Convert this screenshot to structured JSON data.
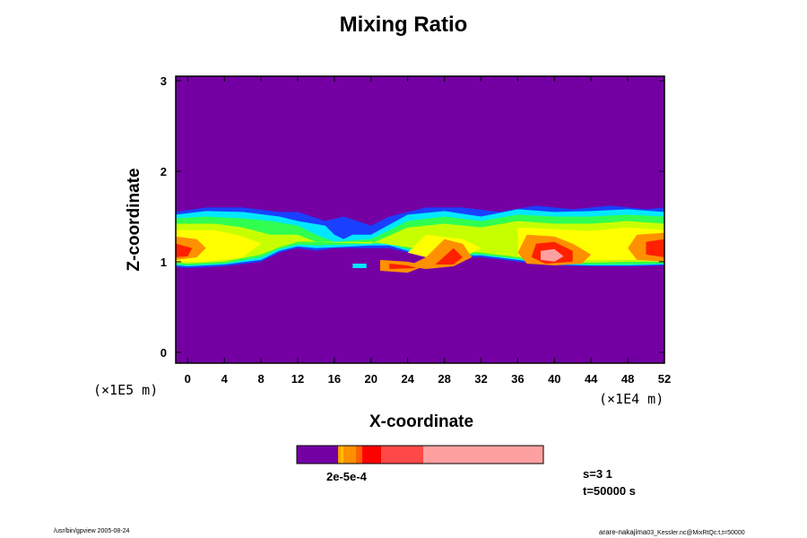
{
  "chart_data": {
    "type": "heatmap",
    "title": "Mixing Ratio",
    "xlabel": "X-coordinate",
    "ylabel": "Z-coordinate",
    "x_unit_label": "(×1E4 m)",
    "y_unit_label": "(×1E5 m)",
    "xlim": [
      -1.3,
      52
    ],
    "ylim": [
      -0.12,
      3.05
    ],
    "x_ticks": [
      "0",
      "4",
      "8",
      "12",
      "16",
      "20",
      "24",
      "28",
      "32",
      "36",
      "40",
      "44",
      "48",
      "52"
    ],
    "y_ticks": [
      "0",
      "1",
      "2",
      "3"
    ],
    "background_color": "#7400a4",
    "colorbar": {
      "colors": [
        "#7400a4",
        "#ffa000",
        "#ffc000",
        "#ff9000",
        "#ff6000",
        "#ff0000",
        "#ff4848",
        "#ffa0a0"
      ],
      "label": "2e-5e-4"
    },
    "layers": [
      {
        "name": "blue",
        "color": "#1a40ff",
        "points": [
          [
            -1.3,
            1.55
          ],
          [
            2,
            1.6
          ],
          [
            6,
            1.6
          ],
          [
            10,
            1.55
          ],
          [
            12,
            1.55
          ],
          [
            15,
            1.45
          ],
          [
            17,
            1.5
          ],
          [
            20,
            1.4
          ],
          [
            22,
            1.5
          ],
          [
            26,
            1.6
          ],
          [
            30,
            1.6
          ],
          [
            34,
            1.55
          ],
          [
            38,
            1.62
          ],
          [
            42,
            1.58
          ],
          [
            46,
            1.62
          ],
          [
            50,
            1.58
          ],
          [
            52,
            1.6
          ],
          [
            52,
            0.96
          ],
          [
            48,
            0.95
          ],
          [
            44,
            0.95
          ],
          [
            40,
            0.96
          ],
          [
            36,
            1.0
          ],
          [
            32,
            1.05
          ],
          [
            28,
            1.05
          ],
          [
            24,
            1.1
          ],
          [
            22,
            1.15
          ],
          [
            20,
            1.15
          ],
          [
            18,
            1.15
          ],
          [
            16,
            1.15
          ],
          [
            14,
            1.12
          ],
          [
            12,
            1.15
          ],
          [
            10,
            1.1
          ],
          [
            8,
            1.0
          ],
          [
            4,
            0.95
          ],
          [
            0,
            0.93
          ],
          [
            -1.3,
            0.94
          ]
        ]
      },
      {
        "name": "cyan",
        "color": "#00e8ff",
        "points": [
          [
            -1.3,
            1.52
          ],
          [
            2,
            1.56
          ],
          [
            6,
            1.55
          ],
          [
            10,
            1.5
          ],
          [
            12,
            1.45
          ],
          [
            15,
            1.4
          ],
          [
            16,
            1.3
          ],
          [
            17,
            1.25
          ],
          [
            18,
            1.3
          ],
          [
            20,
            1.3
          ],
          [
            24,
            1.52
          ],
          [
            28,
            1.56
          ],
          [
            32,
            1.5
          ],
          [
            36,
            1.58
          ],
          [
            40,
            1.55
          ],
          [
            44,
            1.56
          ],
          [
            48,
            1.58
          ],
          [
            52,
            1.55
          ],
          [
            52,
            0.97
          ],
          [
            48,
            0.96
          ],
          [
            44,
            0.96
          ],
          [
            40,
            0.97
          ],
          [
            36,
            1.02
          ],
          [
            32,
            1.07
          ],
          [
            28,
            1.07
          ],
          [
            24,
            1.12
          ],
          [
            22,
            1.18
          ],
          [
            20,
            1.18
          ],
          [
            14,
            1.15
          ],
          [
            12,
            1.17
          ],
          [
            10,
            1.12
          ],
          [
            8,
            1.02
          ],
          [
            4,
            0.97
          ],
          [
            0,
            0.95
          ],
          [
            -1.3,
            0.96
          ]
        ]
      },
      {
        "name": "green",
        "color": "#30ff50",
        "points": [
          [
            -1.3,
            1.48
          ],
          [
            2,
            1.5
          ],
          [
            6,
            1.48
          ],
          [
            9,
            1.45
          ],
          [
            12,
            1.4
          ],
          [
            14,
            1.3
          ],
          [
            16,
            1.22
          ],
          [
            20,
            1.25
          ],
          [
            24,
            1.45
          ],
          [
            28,
            1.5
          ],
          [
            32,
            1.45
          ],
          [
            36,
            1.52
          ],
          [
            40,
            1.5
          ],
          [
            44,
            1.5
          ],
          [
            48,
            1.52
          ],
          [
            52,
            1.5
          ],
          [
            52,
            0.98
          ],
          [
            48,
            0.97
          ],
          [
            44,
            0.97
          ],
          [
            40,
            0.98
          ],
          [
            36,
            1.03
          ],
          [
            32,
            1.08
          ],
          [
            28,
            1.09
          ],
          [
            24,
            1.14
          ],
          [
            22,
            1.2
          ],
          [
            20,
            1.2
          ],
          [
            14,
            1.18
          ],
          [
            12,
            1.19
          ],
          [
            10,
            1.14
          ],
          [
            8,
            1.05
          ],
          [
            4,
            0.98
          ],
          [
            0,
            0.96
          ],
          [
            -1.3,
            0.97
          ]
        ]
      },
      {
        "name": "yellow-green",
        "color": "#c8ff00",
        "points": [
          [
            -1.3,
            1.42
          ],
          [
            3,
            1.42
          ],
          [
            6,
            1.38
          ],
          [
            9,
            1.3
          ],
          [
            12,
            1.3
          ],
          [
            14,
            1.22
          ],
          [
            20,
            1.2
          ],
          [
            24,
            1.38
          ],
          [
            28,
            1.42
          ],
          [
            32,
            1.38
          ],
          [
            36,
            1.45
          ],
          [
            40,
            1.42
          ],
          [
            44,
            1.42
          ],
          [
            48,
            1.45
          ],
          [
            52,
            1.42
          ],
          [
            52,
            1.0
          ],
          [
            48,
            1.0
          ],
          [
            44,
            0.99
          ],
          [
            40,
            1.0
          ],
          [
            36,
            1.05
          ],
          [
            32,
            1.1
          ],
          [
            28,
            1.12
          ],
          [
            24,
            1.16
          ],
          [
            20,
            1.22
          ],
          [
            14,
            1.22
          ],
          [
            12,
            1.22
          ],
          [
            10,
            1.16
          ],
          [
            8,
            1.08
          ],
          [
            4,
            1.0
          ],
          [
            0,
            0.98
          ],
          [
            -1.3,
            0.99
          ]
        ]
      },
      {
        "name": "yellow",
        "color": "#ffff00",
        "points": [
          [
            -1.3,
            1.35
          ],
          [
            3,
            1.35
          ],
          [
            6,
            1.28
          ],
          [
            8,
            1.2
          ],
          [
            6,
            1.05
          ],
          [
            2,
            1.0
          ],
          [
            -1.3,
            1.0
          ]
        ]
      },
      {
        "name": "yellow2",
        "color": "#ffff00",
        "points": [
          [
            36,
            1.38
          ],
          [
            40,
            1.36
          ],
          [
            44,
            1.34
          ],
          [
            48,
            1.38
          ],
          [
            52,
            1.35
          ],
          [
            52,
            1.02
          ],
          [
            48,
            1.02
          ],
          [
            44,
            1.02
          ],
          [
            40,
            1.02
          ],
          [
            36,
            1.06
          ]
        ]
      },
      {
        "name": "yellow3",
        "color": "#ffff00",
        "points": [
          [
            26,
            1.3
          ],
          [
            30,
            1.25
          ],
          [
            32,
            1.15
          ],
          [
            30,
            1.05
          ],
          [
            26,
            1.05
          ],
          [
            24,
            1.1
          ]
        ]
      },
      {
        "name": "orange-left",
        "color": "#ff9000",
        "points": [
          [
            -1.3,
            1.28
          ],
          [
            1,
            1.25
          ],
          [
            2,
            1.15
          ],
          [
            1,
            1.05
          ],
          [
            -1.3,
            1.02
          ]
        ]
      },
      {
        "name": "red-left",
        "color": "#ff2000",
        "points": [
          [
            -1.3,
            1.2
          ],
          [
            0.5,
            1.15
          ],
          [
            0,
            1.06
          ],
          [
            -1.3,
            1.05
          ]
        ]
      },
      {
        "name": "orange-mid",
        "color": "#ff9000",
        "points": [
          [
            28,
            1.25
          ],
          [
            30,
            1.2
          ],
          [
            31,
            1.05
          ],
          [
            29,
            0.95
          ],
          [
            26,
            0.92
          ],
          [
            24,
            0.95
          ],
          [
            26,
            1.05
          ]
        ]
      },
      {
        "name": "red-mid",
        "color": "#ff2000",
        "points": [
          [
            29,
            1.15
          ],
          [
            30,
            1.05
          ],
          [
            29,
            0.97
          ],
          [
            27,
            0.97
          ]
        ]
      },
      {
        "name": "orange-right",
        "color": "#ff9000",
        "points": [
          [
            37,
            1.3
          ],
          [
            40,
            1.28
          ],
          [
            42,
            1.2
          ],
          [
            44,
            1.08
          ],
          [
            43,
            0.98
          ],
          [
            40,
            0.96
          ],
          [
            37,
            0.98
          ],
          [
            36,
            1.1
          ]
        ]
      },
      {
        "name": "red-right",
        "color": "#ff2000",
        "points": [
          [
            38,
            1.2
          ],
          [
            40,
            1.22
          ],
          [
            42,
            1.12
          ],
          [
            42,
            1.0
          ],
          [
            39,
            0.98
          ],
          [
            37.5,
            1.05
          ]
        ]
      },
      {
        "name": "pink-right",
        "color": "#ffa0a0",
        "points": [
          [
            38.5,
            1.12
          ],
          [
            40,
            1.14
          ],
          [
            41,
            1.06
          ],
          [
            40,
            1.0
          ],
          [
            38.5,
            1.02
          ]
        ]
      },
      {
        "name": "orange-farright",
        "color": "#ff9000",
        "points": [
          [
            49,
            1.3
          ],
          [
            52,
            1.32
          ],
          [
            52,
            1.0
          ],
          [
            49,
            1.02
          ],
          [
            48,
            1.15
          ]
        ]
      },
      {
        "name": "red-farright",
        "color": "#ff2000",
        "points": [
          [
            50,
            1.22
          ],
          [
            52,
            1.25
          ],
          [
            52,
            1.05
          ],
          [
            50,
            1.08
          ]
        ]
      },
      {
        "name": "lower-blob",
        "color": "#ff9000",
        "points": [
          [
            21,
            1.02
          ],
          [
            24,
            1.0
          ],
          [
            26,
            0.96
          ],
          [
            24,
            0.88
          ],
          [
            21,
            0.9
          ]
        ]
      },
      {
        "name": "lower-blob-inner",
        "color": "#ff2000",
        "points": [
          [
            22,
            0.98
          ],
          [
            24,
            0.96
          ],
          [
            25,
            0.93
          ],
          [
            22,
            0.92
          ]
        ]
      },
      {
        "name": "small-blob",
        "color": "#00e8ff",
        "points": [
          [
            18,
            0.98
          ],
          [
            19.5,
            0.98
          ],
          [
            19.5,
            0.93
          ],
          [
            18,
            0.93
          ]
        ]
      }
    ]
  },
  "annotations": {
    "step_text": "s=3 1",
    "time_text": "t=50000 s",
    "footer_left": "/usr/bin/gpview 2005-08-24",
    "footer_right": "arare-nakajima",
    "footer_right_small": "03_Kessler.nc@MixRtQc:t,t=50000"
  }
}
